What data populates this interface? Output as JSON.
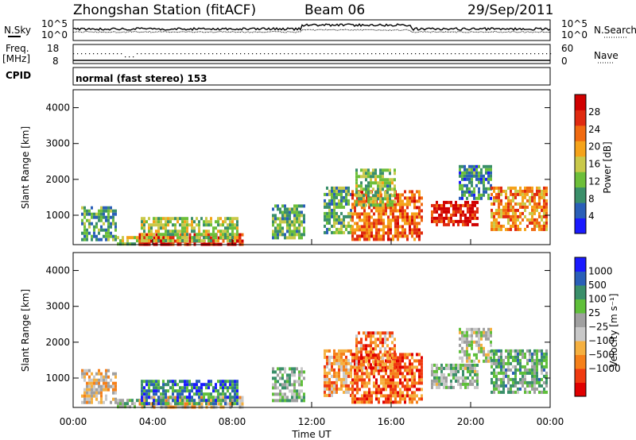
{
  "header": {
    "station": "Zhongshan Station (fitACF)",
    "beam": "Beam 06",
    "date": "29/Sep/2011"
  },
  "status_panels": {
    "nsky_label": "N.Sky",
    "nsky_ticks": [
      "10^5",
      "10^0"
    ],
    "nsearch_label": "N.Search",
    "nsearch_ticks": [
      "10^5",
      "10^0"
    ],
    "freq_label": "Freq.",
    "freq_unit": "[MHz]",
    "freq_ticks": [
      "18",
      "8"
    ],
    "nave_label": "Nave",
    "nave_ticks": [
      "60",
      "0"
    ],
    "cpid_label": "CPID",
    "cpid_value": "normal (fast stereo) 153"
  },
  "colors": {
    "power_scale": [
      "#1a1aff",
      "#2a5fb8",
      "#3a8f6a",
      "#6dbf3a",
      "#c9c94a",
      "#f5a31a",
      "#f06a10",
      "#e02a10",
      "#d00000"
    ],
    "velocity_scale": [
      "#e00000",
      "#f03a10",
      "#f5801a",
      "#f5b040",
      "#c8c8c8",
      "#a0a0a0",
      "#5fbf3a",
      "#3a8f6a",
      "#2a5fb8",
      "#1a1aff"
    ]
  },
  "chart_data": [
    {
      "type": "heatmap",
      "panel": "power",
      "title": "",
      "xlabel": "Time UT",
      "ylabel": "Slant Range [km]",
      "x_ticks": [
        "00:00",
        "04:00",
        "08:00",
        "12:00",
        "16:00",
        "20:00",
        "00:00"
      ],
      "y_ticks": [
        "1000",
        "2000",
        "3000",
        "4000"
      ],
      "xlim_hours": [
        0,
        24
      ],
      "ylim": [
        180,
        4500
      ],
      "colorbar_label": "Power [dB]",
      "colorbar_ticks": [
        "4",
        "8",
        "12",
        "16",
        "20",
        "24",
        "28"
      ],
      "colorbar_range": [
        0,
        30
      ],
      "regions": [
        {
          "t": [
            0.4,
            2.2
          ],
          "r": [
            350,
            1250
          ],
          "v": 9
        },
        {
          "t": [
            2.2,
            3.6
          ],
          "r": [
            200,
            420
          ],
          "v": 14
        },
        {
          "t": [
            3.3,
            8.5
          ],
          "r": [
            200,
            500
          ],
          "v": 27
        },
        {
          "t": [
            3.4,
            8.3
          ],
          "r": [
            300,
            950
          ],
          "v": 13
        },
        {
          "t": [
            10.0,
            11.6
          ],
          "r": [
            400,
            1300
          ],
          "v": 11
        },
        {
          "t": [
            12.6,
            14.0
          ],
          "r": [
            500,
            1800
          ],
          "v": 10
        },
        {
          "t": [
            14.0,
            17.6
          ],
          "r": [
            300,
            1700
          ],
          "v": 22
        },
        {
          "t": [
            14.2,
            16.2
          ],
          "r": [
            1300,
            2300
          ],
          "v": 12
        },
        {
          "t": [
            18.0,
            20.3
          ],
          "r": [
            700,
            1400
          ],
          "v": 27
        },
        {
          "t": [
            19.4,
            21.0
          ],
          "r": [
            1500,
            2400
          ],
          "v": 8
        },
        {
          "t": [
            21.0,
            23.8
          ],
          "r": [
            600,
            1800
          ],
          "v": 20
        }
      ]
    },
    {
      "type": "heatmap",
      "panel": "velocity",
      "title": "",
      "xlabel": "Time UT",
      "ylabel": "Slant Range [km]",
      "x_ticks": [
        "00:00",
        "04:00",
        "08:00",
        "12:00",
        "16:00",
        "20:00",
        "00:00"
      ],
      "y_ticks": [
        "1000",
        "2000",
        "3000",
        "4000"
      ],
      "xlim_hours": [
        0,
        24
      ],
      "ylim": [
        180,
        4500
      ],
      "colorbar_label": "Velocity [m s⁻¹]",
      "colorbar_ticks": [
        "1000",
        "500",
        "100",
        "25",
        "−25",
        "−100",
        "−500",
        "−1000"
      ],
      "colorbar_range": [
        -1000,
        1000
      ],
      "regions": [
        {
          "t": [
            0.4,
            2.2
          ],
          "r": [
            350,
            1250
          ],
          "v": -200
        },
        {
          "t": [
            2.2,
            3.6
          ],
          "r": [
            200,
            420
          ],
          "v": 300
        },
        {
          "t": [
            3.3,
            8.5
          ],
          "r": [
            200,
            500
          ],
          "v": -150
        },
        {
          "t": [
            3.4,
            8.3
          ],
          "r": [
            300,
            950
          ],
          "v": 600
        },
        {
          "t": [
            10.0,
            11.6
          ],
          "r": [
            400,
            1300
          ],
          "v": 200
        },
        {
          "t": [
            12.6,
            14.0
          ],
          "r": [
            500,
            1800
          ],
          "v": -400
        },
        {
          "t": [
            14.0,
            17.6
          ],
          "r": [
            300,
            1700
          ],
          "v": -600
        },
        {
          "t": [
            14.2,
            16.2
          ],
          "r": [
            1300,
            2300
          ],
          "v": -500
        },
        {
          "t": [
            18.0,
            20.3
          ],
          "r": [
            700,
            1400
          ],
          "v": 150
        },
        {
          "t": [
            19.4,
            21.0
          ],
          "r": [
            1500,
            2400
          ],
          "v": 40
        },
        {
          "t": [
            21.0,
            23.8
          ],
          "r": [
            600,
            1800
          ],
          "v": 300
        }
      ]
    }
  ]
}
